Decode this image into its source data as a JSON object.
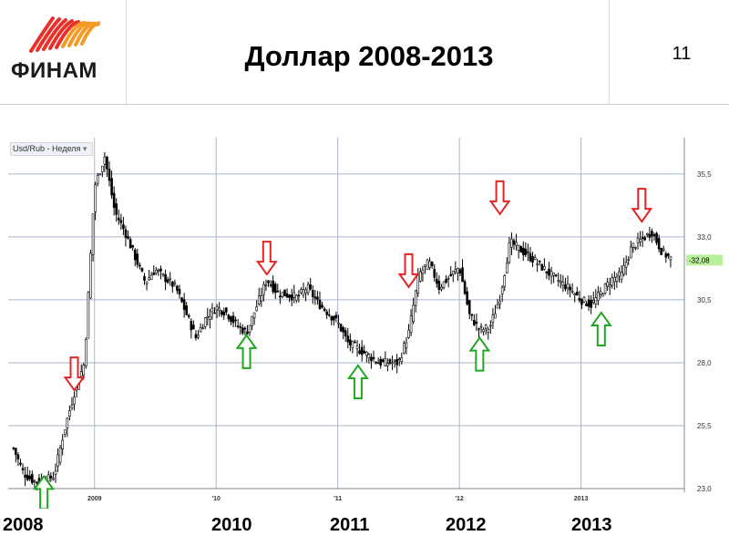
{
  "logo": {
    "text": "ФИНАМ",
    "icon": "finam-logo-icon",
    "colors": [
      "#e8312b",
      "#f49a26"
    ]
  },
  "slide": {
    "title": "Доллар 2008-2013",
    "page_number": "11"
  },
  "chart": {
    "legend": "Usd/Rub - Неделя"
  },
  "bottom_years": [
    "2008",
    "2010",
    "2011",
    "2012",
    "2013"
  ],
  "chart_data": {
    "type": "candlestick",
    "series_name": "Usd/Rub",
    "period": "Неделя",
    "x_tick_labels": [
      "2009",
      "'10",
      "'11",
      "'12",
      "2013"
    ],
    "y_tick_labels": [
      "35,5",
      "33,0",
      "30,5",
      "28,0",
      "25,5",
      "23,0"
    ],
    "ylim": [
      23.0,
      36.8
    ],
    "last_price_label": "-32,08",
    "grid": true,
    "price_path": [
      [
        "2008-05",
        24.6
      ],
      [
        "2008-06",
        23.6
      ],
      [
        "2008-07",
        23.3
      ],
      [
        "2008-08",
        23.3
      ],
      [
        "2008-09",
        23.5
      ],
      [
        "2008-10",
        25.3
      ],
      [
        "2008-11",
        26.8
      ],
      [
        "2008-12",
        28.0
      ],
      [
        "2009-01",
        35.0
      ],
      [
        "2009-02",
        36.2
      ],
      [
        "2009-03",
        34.0
      ],
      [
        "2009-04",
        33.2
      ],
      [
        "2009-06",
        31.2
      ],
      [
        "2009-07",
        31.7
      ],
      [
        "2009-09",
        31.0
      ],
      [
        "2009-11",
        29.0
      ],
      [
        "2009-12",
        29.8
      ],
      [
        "2010-01",
        30.2
      ],
      [
        "2010-02",
        30.0
      ],
      [
        "2010-03",
        29.5
      ],
      [
        "2010-04",
        29.2
      ],
      [
        "2010-06",
        31.3
      ],
      [
        "2010-07",
        30.8
      ],
      [
        "2010-09",
        30.6
      ],
      [
        "2010-10",
        31.0
      ],
      [
        "2010-11",
        30.4
      ],
      [
        "2011-01",
        29.6
      ],
      [
        "2011-02",
        28.8
      ],
      [
        "2011-04",
        28.3
      ],
      [
        "2011-05",
        28.0
      ],
      [
        "2011-07",
        28.0
      ],
      [
        "2011-08",
        29.2
      ],
      [
        "2011-09",
        31.5
      ],
      [
        "2011-10",
        32.0
      ],
      [
        "2011-11",
        31.0
      ],
      [
        "2012-01",
        31.8
      ],
      [
        "2012-02",
        29.9
      ],
      [
        "2012-03",
        29.3
      ],
      [
        "2012-04",
        29.4
      ],
      [
        "2012-05",
        30.6
      ],
      [
        "2012-06",
        32.8
      ],
      [
        "2012-07",
        32.5
      ],
      [
        "2012-08",
        32.2
      ],
      [
        "2012-10",
        31.5
      ],
      [
        "2012-11",
        31.2
      ],
      [
        "2012-12",
        30.9
      ],
      [
        "2013-01",
        30.5
      ],
      [
        "2013-02",
        30.3
      ],
      [
        "2013-03",
        30.8
      ],
      [
        "2013-04",
        31.3
      ],
      [
        "2013-05",
        31.5
      ],
      [
        "2013-06",
        32.6
      ],
      [
        "2013-07",
        32.9
      ],
      [
        "2013-08",
        33.2
      ],
      [
        "2013-09",
        32.4
      ],
      [
        "2013-10",
        32.1
      ]
    ],
    "annotations": [
      {
        "type": "arrow-up",
        "color": "#21a621",
        "date": "2008-08",
        "value": 23.6
      },
      {
        "type": "arrow-down",
        "color": "#e42526",
        "date": "2008-11",
        "value": 26.8
      },
      {
        "type": "arrow-up",
        "color": "#21a621",
        "date": "2010-04",
        "value": 29.2
      },
      {
        "type": "arrow-down",
        "color": "#e42526",
        "date": "2010-06",
        "value": 31.4
      },
      {
        "type": "arrow-up",
        "color": "#21a621",
        "date": "2011-03",
        "value": 28.0
      },
      {
        "type": "arrow-down",
        "color": "#e42526",
        "date": "2011-08",
        "value": 30.9
      },
      {
        "type": "arrow-up",
        "color": "#21a621",
        "date": "2012-03",
        "value": 29.1
      },
      {
        "type": "arrow-down",
        "color": "#e42526",
        "date": "2012-05",
        "value": 33.8
      },
      {
        "type": "arrow-up",
        "color": "#21a621",
        "date": "2013-03",
        "value": 30.1
      },
      {
        "type": "arrow-down",
        "color": "#e42526",
        "date": "2013-07",
        "value": 33.5
      }
    ]
  }
}
